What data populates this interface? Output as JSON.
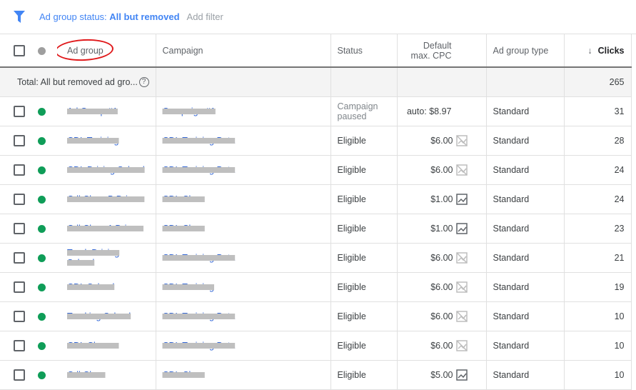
{
  "filter": {
    "label": "Ad group status: ",
    "value": "All but removed",
    "add": "Add filter"
  },
  "columns": {
    "ad_group": "Ad group",
    "campaign": "Campaign",
    "status": "Status",
    "cpc_line1": "Default",
    "cpc_line2": "max. CPC",
    "type": "Ad group type",
    "clicks": "Clicks"
  },
  "total": {
    "label": "Total: All but removed ad gro...",
    "clicks": "265"
  },
  "colors": {
    "accent": "#4285f4",
    "eligible_dot": "#0f9d58",
    "header_dot": "#9e9e9e",
    "annotation": "#e0191b"
  },
  "rows": [
    {
      "ad_group": "Ad Group #1",
      "campaign": "Campaign #1",
      "status": "Campaign paused",
      "cpc": "auto: $8.97",
      "icon": "",
      "type": "Standard",
      "clicks": "31"
    },
    {
      "ad_group": "CDL Training",
      "campaign": "CDL Training Beta",
      "status": "Eligible",
      "cpc": "$6.00",
      "icon": "no-data-chart-icon",
      "type": "Standard",
      "clicks": "28"
    },
    {
      "ad_group": "CDL Driving School",
      "campaign": "CDL Training Beta",
      "status": "Eligible",
      "cpc": "$6.00",
      "icon": "no-data-chart-icon",
      "type": "Standard",
      "clicks": "24"
    },
    {
      "ad_group": "Cdl Class B Drivers",
      "campaign": "CDL Class",
      "status": "Eligible",
      "cpc": "$1.00",
      "icon": "line-chart-icon",
      "type": "Standard",
      "clicks": "24"
    },
    {
      "ad_group": "Cdl Class A Drivers",
      "campaign": "CDL Class",
      "status": "Eligible",
      "cpc": "$1.00",
      "icon": "line-chart-icon",
      "type": "Standard",
      "clicks": "23"
    },
    {
      "ad_group": "Truck Driving School",
      "campaign": "CDL Training Beta",
      "status": "Eligible",
      "cpc": "$6.00",
      "icon": "no-data-chart-icon",
      "type": "Standard",
      "clicks": "21"
    },
    {
      "ad_group": "CDL School",
      "campaign": "CDL Training",
      "status": "Eligible",
      "cpc": "$6.00",
      "icon": "no-data-chart-icon",
      "type": "Standard",
      "clicks": "19"
    },
    {
      "ad_group": "Trucking School",
      "campaign": "CDL Training Beta",
      "status": "Eligible",
      "cpc": "$6.00",
      "icon": "no-data-chart-icon",
      "type": "Standard",
      "clicks": "10"
    },
    {
      "ad_group": "CDL Classes",
      "campaign": "CDL Training Beta",
      "status": "Eligible",
      "cpc": "$6.00",
      "icon": "no-data-chart-icon",
      "type": "Standard",
      "clicks": "10"
    },
    {
      "ad_group": "Cdl Class",
      "campaign": "CDL Class",
      "status": "Eligible",
      "cpc": "$5.00",
      "icon": "line-chart-icon",
      "type": "Standard",
      "clicks": "10"
    }
  ]
}
